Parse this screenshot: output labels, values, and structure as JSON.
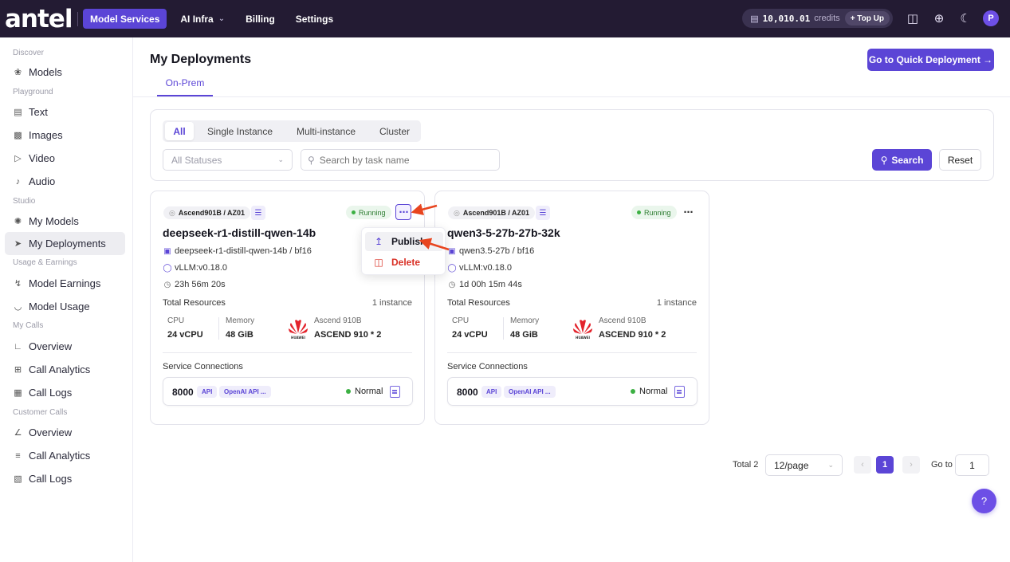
{
  "topbar": {
    "logo": "antel",
    "nav": [
      {
        "label": "Model Services",
        "active": true
      },
      {
        "label": "AI Infra",
        "dropdown": true
      },
      {
        "label": "Billing"
      },
      {
        "label": "Settings"
      }
    ],
    "credits_value": "10,010.01",
    "credits_label": "credits",
    "topup_label": "+ Top Up",
    "icons": [
      "book-icon",
      "globe-icon",
      "moon-icon"
    ],
    "avatar_initial": "P"
  },
  "sidebar": {
    "sections": [
      {
        "title": "Discover",
        "items": [
          {
            "label": "Models",
            "icon": "models-icon"
          }
        ]
      },
      {
        "title": "Playground",
        "items": [
          {
            "label": "Text",
            "icon": "text-icon"
          },
          {
            "label": "Images",
            "icon": "image-icon"
          },
          {
            "label": "Video",
            "icon": "video-icon"
          },
          {
            "label": "Audio",
            "icon": "audio-icon"
          }
        ]
      },
      {
        "title": "Studio",
        "items": [
          {
            "label": "My Models",
            "icon": "my-models-icon"
          },
          {
            "label": "My Deployments",
            "icon": "rocket-icon",
            "active": true
          }
        ]
      },
      {
        "title": "Usage & Earnings",
        "items": [
          {
            "label": "Model Earnings",
            "icon": "earnings-icon"
          },
          {
            "label": "Model Usage",
            "icon": "gauge-icon"
          }
        ]
      },
      {
        "title": "My Calls",
        "items": [
          {
            "label": "Overview",
            "icon": "chart-icon"
          },
          {
            "label": "Call Analytics",
            "icon": "table-icon"
          },
          {
            "label": "Call Logs",
            "icon": "logs-icon"
          }
        ]
      },
      {
        "title": "Customer Calls",
        "items": [
          {
            "label": "Overview",
            "icon": "chart-icon"
          },
          {
            "label": "Call Analytics",
            "icon": "list-icon"
          },
          {
            "label": "Call Logs",
            "icon": "logs-icon"
          }
        ]
      }
    ]
  },
  "main": {
    "title": "My Deployments",
    "tab": "On-Prem",
    "quick_deploy_label": "Go to Quick Deployment →",
    "filters": {
      "types": [
        "All",
        "Single Instance",
        "Multi-instance",
        "Cluster"
      ],
      "active_type": "All",
      "status_placeholder": "All Statuses",
      "search_placeholder": "Search by task name",
      "search_label": "Search",
      "reset_label": "Reset"
    },
    "cards": [
      {
        "location": "Ascend901B / AZ01",
        "status": "Running",
        "name": "deepseek-r1-distill-qwen-14b",
        "model": "deepseek-r1-distill-qwen-14b / bf16",
        "engine": "vLLM:v0.18.0",
        "uptime": "23h 56m 20s",
        "resources_label": "Total Resources",
        "instances": "1 instance",
        "cpu_label": "CPU",
        "cpu": "24 vCPU",
        "memory_label": "Memory",
        "memory": "48 GiB",
        "accel_label": "Ascend 910B",
        "accel": "ASCEND 910 * 2",
        "service_label": "Service Connections",
        "port": "8000",
        "api_tag": "API",
        "api_name": "OpenAI API ...",
        "conn_status": "Normal"
      },
      {
        "location": "Ascend901B / AZ01",
        "status": "Running",
        "name": "qwen3-5-27b-27b-32k",
        "model": "qwen3.5-27b / bf16",
        "engine": "vLLM:v0.18.0",
        "uptime": "1d 00h 15m 44s",
        "resources_label": "Total Resources",
        "instances": "1 instance",
        "cpu_label": "CPU",
        "cpu": "24 vCPU",
        "memory_label": "Memory",
        "memory": "48 GiB",
        "accel_label": "Ascend 910B",
        "accel": "ASCEND 910 * 2",
        "service_label": "Service Connections",
        "port": "8000",
        "api_tag": "API",
        "api_name": "OpenAI API ...",
        "conn_status": "Normal"
      }
    ],
    "menu": {
      "publish": "Publish",
      "delete": "Delete"
    },
    "pagination": {
      "total": "Total 2",
      "page_size": "12/page",
      "current": "1",
      "goto_label": "Go to",
      "goto_value": "1"
    }
  },
  "colors": {
    "accent": "#5b45d6",
    "topbar": "#231b33",
    "running": "#3cb043",
    "danger": "#d93025",
    "annotation": "#e8451f"
  }
}
